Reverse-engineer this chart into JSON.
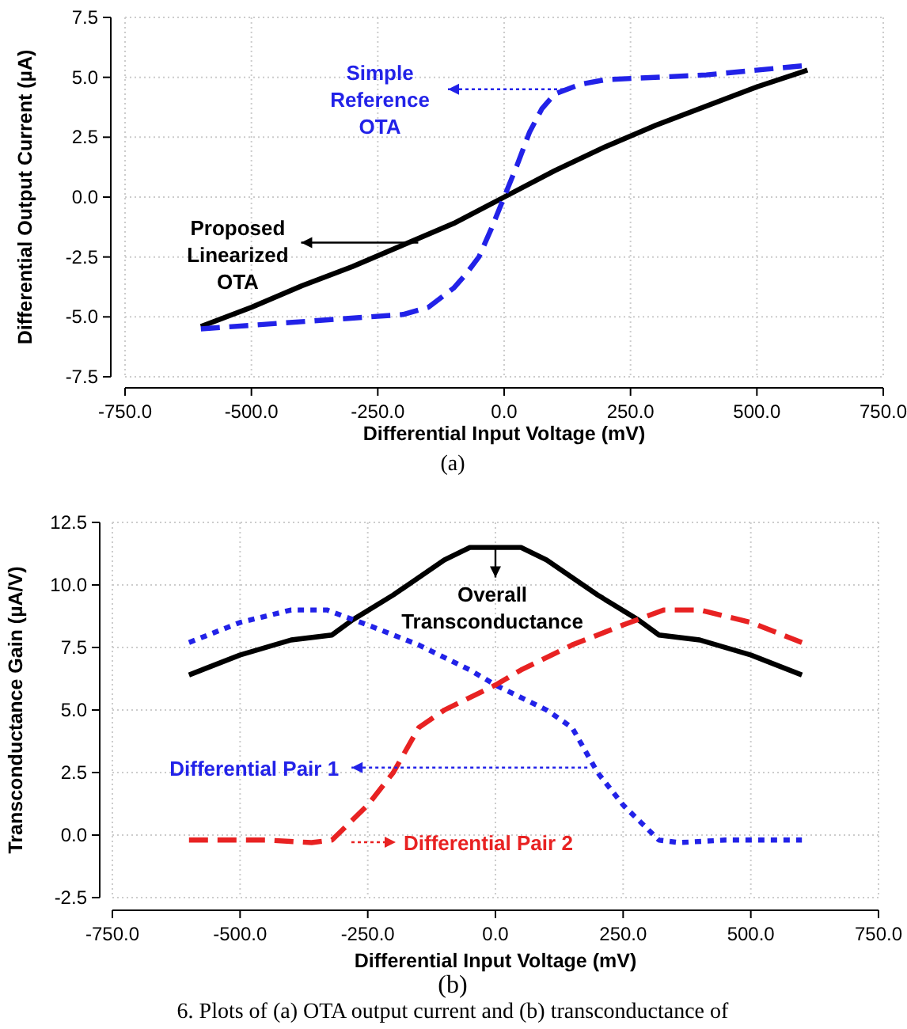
{
  "chart_data": [
    {
      "type": "line",
      "xlabel": "Differential Input Voltage (mV)",
      "ylabel": "Differential Output Current (µA)",
      "xlim": [
        -750,
        750
      ],
      "xticks": [
        {
          "value": -750,
          "label": "-750.0"
        },
        {
          "value": -500,
          "label": "-500.0"
        },
        {
          "value": -250,
          "label": "-250.0"
        },
        {
          "value": 0,
          "label": "0.0"
        },
        {
          "value": 250,
          "label": "250.0"
        },
        {
          "value": 500,
          "label": "500.0"
        },
        {
          "value": 750,
          "label": "750.0"
        }
      ],
      "ylim": [
        -7.5,
        7.5
      ],
      "yticks": [
        -7.5,
        {
          "value": -5,
          "label": "-5.0"
        },
        -2.5,
        {
          "value": 0,
          "label": "0.0"
        },
        2.5,
        {
          "value": 5,
          "label": "5.0"
        },
        7.5
      ],
      "grid": true,
      "series": [
        {
          "color": "#000000",
          "line_style": "solid",
          "x": [
            -600,
            -500,
            -400,
            -300,
            -200,
            -100,
            0,
            100,
            200,
            300,
            400,
            500,
            600
          ],
          "values": [
            -5.4,
            -4.6,
            -3.7,
            -2.9,
            -2.0,
            -1.1,
            0,
            1.1,
            2.1,
            3.0,
            3.8,
            4.6,
            5.3
          ]
        },
        {
          "color": "#2222e8",
          "line_style": "dashed",
          "x": [
            -600,
            -400,
            -200,
            -150,
            -100,
            -75,
            -50,
            -25,
            0,
            25,
            50,
            75,
            100,
            150,
            200,
            400,
            600
          ],
          "values": [
            -5.5,
            -5.2,
            -4.9,
            -4.6,
            -3.8,
            -3.2,
            -2.5,
            -1.3,
            0,
            1.3,
            2.7,
            3.7,
            4.3,
            4.7,
            4.9,
            5.1,
            5.5
          ]
        }
      ],
      "annotations": [
        {
          "text": "Simple\nReference\nOTA",
          "x": 130,
          "y": 4.5
        },
        {
          "text": "Proposed\nLinearized\nOTA",
          "x": -170,
          "y": -1.9
        },
        "(a)"
      ]
    },
    {
      "type": "line",
      "xlabel": "Differential Input Voltage (mV)",
      "ylabel": "Transconductance Gain (µA/V)",
      "xlim": [
        -750,
        750
      ],
      "xticks": [
        {
          "value": -750,
          "label": "-750.0"
        },
        {
          "value": -500,
          "label": "-500.0"
        },
        {
          "value": -250,
          "label": "-250.0"
        },
        {
          "value": 0,
          "label": "0.0"
        },
        {
          "value": 250,
          "label": "250.0"
        },
        {
          "value": 500,
          "label": "500.0"
        },
        {
          "value": 750,
          "label": "750.0"
        }
      ],
      "ylim": [
        -2.5,
        12.5
      ],
      "yticks": [
        -2.5,
        {
          "value": 0,
          "label": "0.0"
        },
        2.5,
        {
          "value": 5,
          "label": "5.0"
        },
        7.5,
        {
          "value": 10,
          "label": "10.0"
        },
        12.5
      ],
      "grid": true,
      "series": [
        {
          "color": "#000000",
          "line_style": "solid",
          "x": [
            -600,
            -500,
            -400,
            -320,
            -280,
            -200,
            -100,
            -50,
            0,
            50,
            100,
            200,
            280,
            320,
            400,
            500,
            600
          ],
          "values": [
            6.4,
            7.2,
            7.8,
            8.0,
            8.6,
            9.6,
            11.0,
            11.5,
            11.5,
            11.5,
            11.0,
            9.6,
            8.6,
            8.0,
            7.8,
            7.2,
            6.4
          ]
        },
        {
          "color": "#2222e8",
          "line_style": "dotted",
          "x": [
            -600,
            -500,
            -400,
            -330,
            -250,
            -150,
            -50,
            0,
            100,
            150,
            200,
            250,
            320,
            360,
            450,
            600
          ],
          "values": [
            7.7,
            8.5,
            9.0,
            9.0,
            8.4,
            7.6,
            6.6,
            6.0,
            5.0,
            4.3,
            2.5,
            1.2,
            -0.2,
            -0.3,
            -0.2,
            -0.2
          ]
        },
        {
          "color": "#e82222",
          "line_style": "dashed",
          "x": [
            -600,
            -450,
            -360,
            -320,
            -250,
            -200,
            -150,
            -100,
            0,
            50,
            150,
            250,
            330,
            400,
            500,
            600
          ],
          "values": [
            -0.2,
            -0.2,
            -0.3,
            -0.2,
            1.2,
            2.5,
            4.3,
            5.0,
            6.0,
            6.6,
            7.6,
            8.4,
            9.0,
            9.0,
            8.5,
            7.7
          ]
        }
      ],
      "annotations": [
        {
          "text": "Overall\nTransconductance",
          "x": 0,
          "y": 11.5
        },
        {
          "text": "Differential Pair 1",
          "x": 180,
          "y": 2.7
        },
        "Differential Pair 2",
        "(b)",
        "6. Plots of (a) OTA output current and (b) transconductance of"
      ]
    }
  ]
}
